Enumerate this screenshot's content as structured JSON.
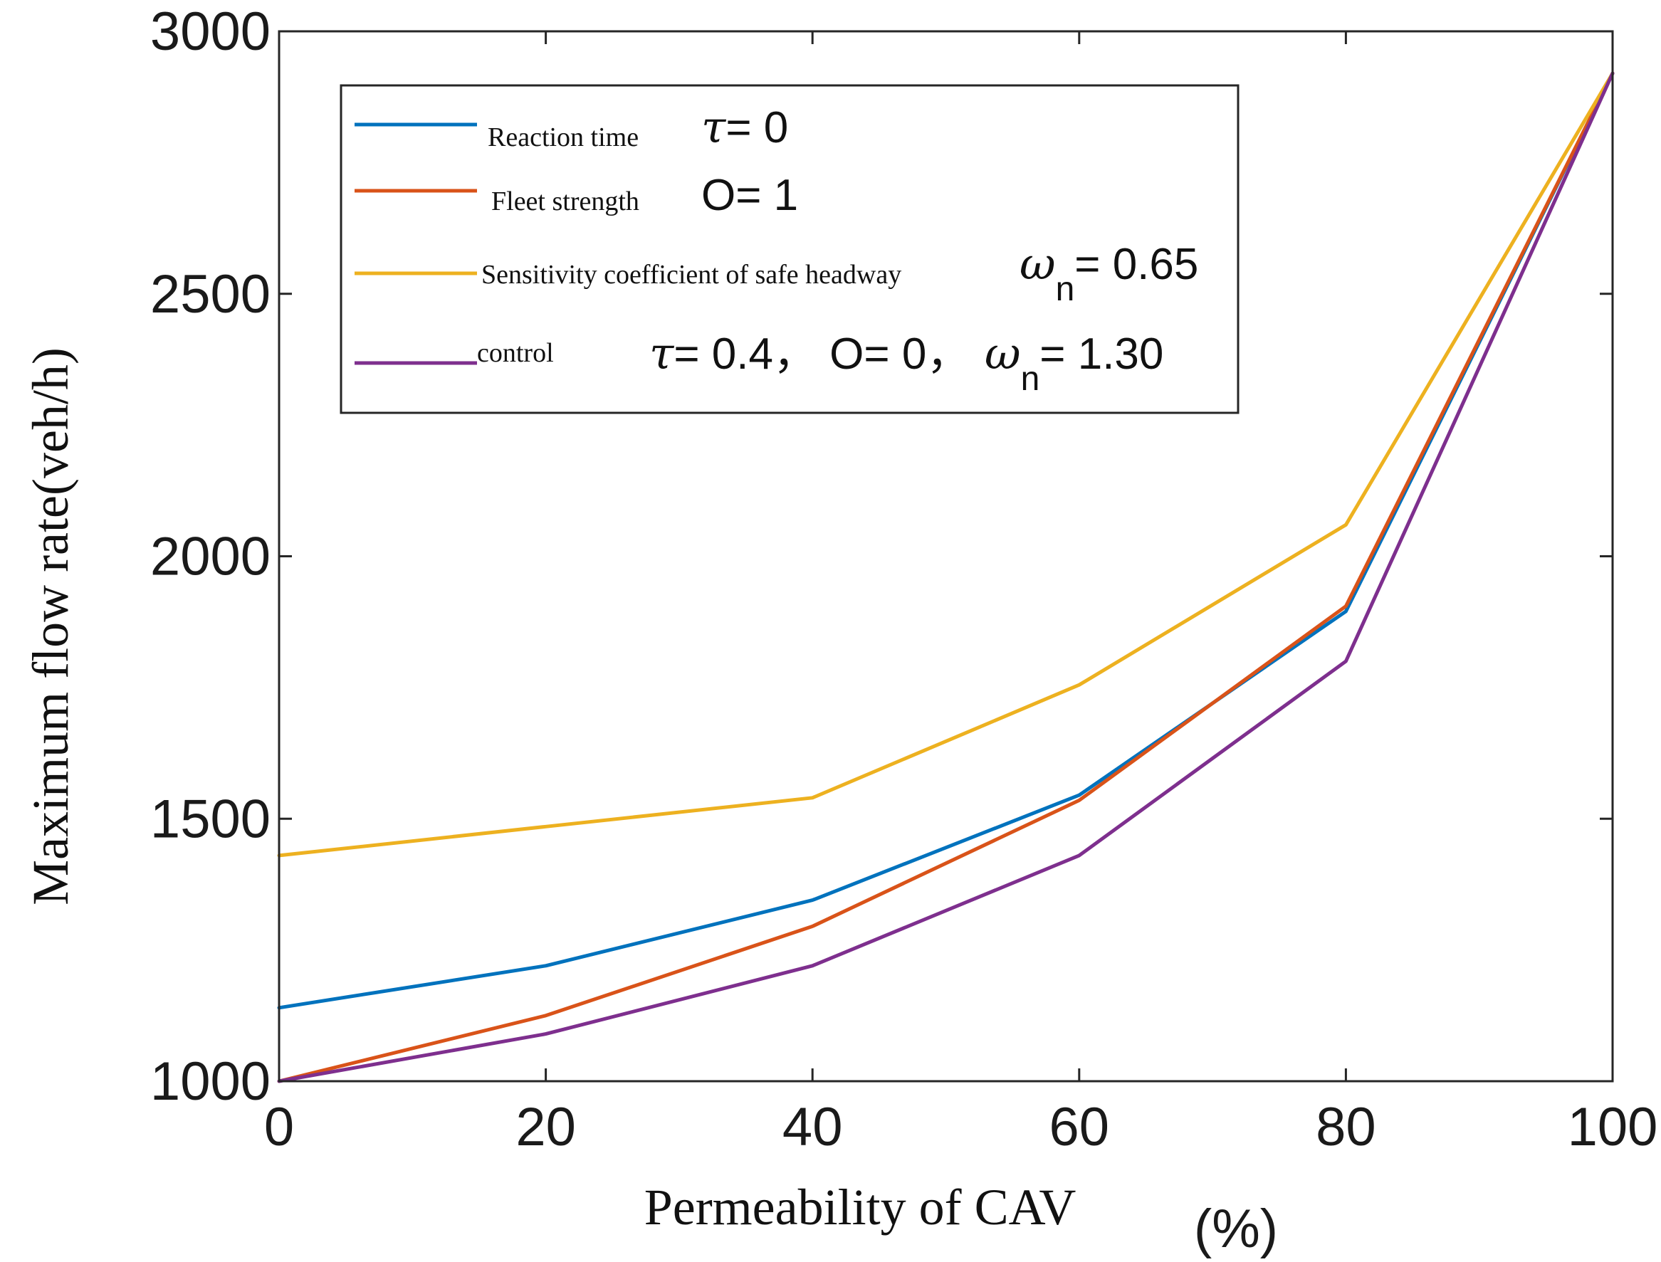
{
  "chart_data": {
    "type": "line",
    "title": "",
    "xlabel": "Permeability of CAV",
    "xlabel_unit": "(%)",
    "ylabel": "Maximum flow rate(veh/h)",
    "xlim": [
      0,
      100
    ],
    "ylim": [
      1000,
      3000
    ],
    "x_ticks": [
      "0",
      "20",
      "40",
      "60",
      "80",
      "100"
    ],
    "y_ticks": [
      "1000",
      "1500",
      "2000",
      "2500",
      "3000"
    ],
    "grid": false,
    "legend_position": "top-left",
    "x": [
      0,
      20,
      40,
      60,
      80,
      100
    ],
    "series": [
      {
        "name": "Reaction time",
        "param_symbol": "τ",
        "param_value": "= 0",
        "color": "#0072BD",
        "values": [
          1140,
          1220,
          1345,
          1545,
          1895,
          2920
        ]
      },
      {
        "name": "Fleet strength",
        "param_value": "O= 1",
        "color": "#D95319",
        "values": [
          1000,
          1125,
          1295,
          1535,
          1905,
          2920
        ]
      },
      {
        "name": "Sensitivity coefficient of safe headway",
        "param_symbol": "ω",
        "param_sub": "n",
        "param_value": "= 0.65",
        "color": "#EDB120",
        "values": [
          1430,
          1485,
          1540,
          1755,
          2060,
          2920
        ]
      },
      {
        "name": "control",
        "param_symbol": "τ",
        "param_value": "= 0.4，  O= 0，",
        "param_symbol_2": "ω",
        "param_sub_2": "n",
        "param_value_2": "= 1.30",
        "color": "#7E2F8E",
        "values": [
          1000,
          1090,
          1220,
          1430,
          1800,
          2920
        ]
      }
    ]
  }
}
